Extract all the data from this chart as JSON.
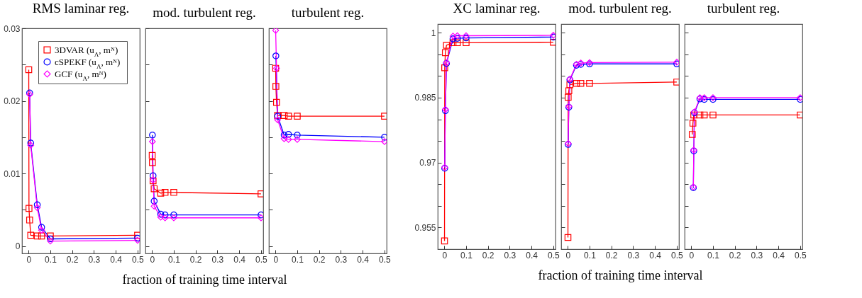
{
  "chart_data": [
    {
      "type": "line",
      "title": "RMS laminar reg.",
      "xlim": [
        -0.03,
        0.51
      ],
      "xticks": [
        0,
        0.1,
        0.2,
        0.3,
        0.4,
        0.5
      ],
      "ylim": [
        -0.001,
        0.03
      ],
      "yticks": [
        0,
        {
          "value": 0.005,
          "label": null
        },
        0.01,
        {
          "value": 0.015,
          "label": null
        },
        0.02,
        {
          "value": 0.025,
          "label": null
        },
        0.03
      ],
      "grid": false,
      "legend": "top right",
      "series": [
        {
          "name": "3DVAR (u$_{Λ}$, mᴺ)",
          "color": "#ff0000",
          "marker": "square",
          "x": [
            0.001,
            0.002,
            0.005,
            0.01,
            0.04,
            0.06,
            0.1,
            0.5
          ],
          "values": [
            0.0243,
            0.0052,
            0.0036,
            0.0015,
            0.0014,
            0.0014,
            0.0014,
            0.0015
          ]
        },
        {
          "name": "cSPEKF (u$_{Λ}$, mᴺ)",
          "color": "#0000ff",
          "marker": "circle",
          "x": [
            0.005,
            0.01,
            0.04,
            0.06,
            0.1,
            0.5
          ],
          "values": [
            0.0211,
            0.0142,
            0.0057,
            0.0026,
            0.001,
            0.0011
          ]
        },
        {
          "name": "GCF (u$_{Λ}$, mᴺ)",
          "color": "#ff00ff",
          "marker": "diamond",
          "x": [
            0.005,
            0.01,
            0.04,
            0.06,
            0.1,
            0.5
          ],
          "values": [
            0.0209,
            0.0139,
            0.0053,
            0.0022,
            0.0007,
            0.0008
          ]
        }
      ]
    },
    {
      "type": "line",
      "title": "mod. turbulent reg.",
      "xlabel": "fraction of training time interval",
      "tick_labels": "x",
      "xlim": [
        -0.03,
        0.51
      ],
      "xticks": [
        0,
        0.1,
        0.2,
        0.3,
        0.4,
        0.5
      ],
      "ylim": [
        -0.001,
        0.03
      ],
      "yticks": [
        {
          "value": 0,
          "label": null
        },
        {
          "value": 0.005,
          "label": null
        },
        {
          "value": 0.01,
          "label": null
        },
        {
          "value": 0.015,
          "label": null
        },
        {
          "value": 0.02,
          "label": null
        },
        {
          "value": 0.025,
          "label": null
        },
        {
          "value": 0.03,
          "label": null
        }
      ],
      "grid": false,
      "series": [
        {
          "color": "#ff0000",
          "marker": "square",
          "x": [
            0.001,
            0.002,
            0.005,
            0.01,
            0.04,
            0.06,
            0.1,
            0.5
          ],
          "values": [
            0.0125,
            0.0115,
            0.009,
            0.0079,
            0.0073,
            0.0074,
            0.0074,
            0.0072
          ]
        },
        {
          "color": "#0000ff",
          "marker": "circle",
          "x": [
            0.002,
            0.005,
            0.01,
            0.04,
            0.06,
            0.1,
            0.5
          ],
          "values": [
            0.0153,
            0.0097,
            0.0062,
            0.0044,
            0.0043,
            0.0043,
            0.0043
          ]
        },
        {
          "color": "#ff00ff",
          "marker": "diamond",
          "x": [
            0.002,
            0.005,
            0.01,
            0.04,
            0.06,
            0.1,
            0.5
          ],
          "values": [
            0.0144,
            0.0091,
            0.0055,
            0.004,
            0.0039,
            0.0039,
            0.0039
          ]
        }
      ]
    },
    {
      "type": "line",
      "title": "turbulent reg.",
      "tick_labels": "x",
      "xlim": [
        -0.03,
        0.51
      ],
      "xticks": [
        0,
        0.1,
        0.2,
        0.3,
        0.4,
        0.5
      ],
      "ylim": [
        -0.001,
        0.03
      ],
      "yticks": [
        {
          "value": 0,
          "label": null
        },
        {
          "value": 0.005,
          "label": null
        },
        {
          "value": 0.01,
          "label": null
        },
        {
          "value": 0.015,
          "label": null
        },
        {
          "value": 0.02,
          "label": null
        },
        {
          "value": 0.025,
          "label": null
        },
        {
          "value": 0.03,
          "label": null
        }
      ],
      "grid": false,
      "series": [
        {
          "color": "#ff0000",
          "marker": "square",
          "x": [
            0.001,
            0.002,
            0.005,
            0.01,
            0.04,
            0.06,
            0.1,
            0.5
          ],
          "values": [
            0.0245,
            0.022,
            0.0198,
            0.018,
            0.018,
            0.0179,
            0.0179,
            0.0179
          ]
        },
        {
          "color": "#0000ff",
          "marker": "circle",
          "x": [
            0.002,
            0.01,
            0.04,
            0.06,
            0.1,
            0.5
          ],
          "values": [
            0.0262,
            0.0179,
            0.0153,
            0.0154,
            0.0153,
            0.015
          ]
        },
        {
          "color": "#ff00ff",
          "marker": "diamond",
          "x": [
            0.001,
            0.005,
            0.01,
            0.04,
            0.06,
            0.1,
            0.5
          ],
          "values": [
            0.0297,
            0.0245,
            0.0174,
            0.0148,
            0.0147,
            0.0147,
            0.0144
          ]
        }
      ]
    },
    {
      "type": "line",
      "title": "XC laminar reg.",
      "xlim": [
        -0.03,
        0.51
      ],
      "xticks": [
        0,
        0.1,
        0.2,
        0.3,
        0.4,
        0.5
      ],
      "ylim": [
        0.95,
        1.002
      ],
      "yticks": [
        0.955,
        {
          "value": 0.96,
          "label": null
        },
        {
          "value": 0.965,
          "label": null
        },
        0.97,
        {
          "value": 0.975,
          "label": null
        },
        {
          "value": 0.98,
          "label": null
        },
        0.985,
        {
          "value": 0.99,
          "label": null
        },
        {
          "value": 0.995,
          "label": null
        },
        1
      ],
      "grid": false,
      "series": [
        {
          "color": "#ff0000",
          "marker": "square",
          "x": [
            0.001,
            0.002,
            0.005,
            0.01,
            0.04,
            0.06,
            0.1,
            0.5
          ],
          "values": [
            0.9519,
            0.9919,
            0.9954,
            0.9971,
            0.9977,
            0.9977,
            0.9977,
            0.9978
          ]
        },
        {
          "color": "#0000ff",
          "marker": "circle",
          "x": [
            0.002,
            0.005,
            0.01,
            0.04,
            0.06,
            0.1,
            0.5
          ],
          "values": [
            0.9687,
            0.982,
            0.9929,
            0.9986,
            0.9987,
            0.9988,
            0.999
          ]
        },
        {
          "color": "#ff00ff",
          "marker": "diamond",
          "x": [
            0.002,
            0.005,
            0.01,
            0.04,
            0.06,
            0.1,
            0.5
          ],
          "values": [
            0.9689,
            0.9823,
            0.9931,
            0.9992,
            0.9993,
            0.9993,
            0.9994
          ]
        }
      ]
    },
    {
      "type": "line",
      "title": "mod. turbulent reg.",
      "xlabel": "fraction of training time interval",
      "tick_labels": "x",
      "xlim": [
        -0.03,
        0.51
      ],
      "xticks": [
        0,
        0.1,
        0.2,
        0.3,
        0.4,
        0.5
      ],
      "ylim": [
        0.95,
        1.002
      ],
      "yticks": [
        {
          "value": 0.955,
          "label": null
        },
        {
          "value": 0.96,
          "label": null
        },
        {
          "value": 0.965,
          "label": null
        },
        {
          "value": 0.97,
          "label": null
        },
        {
          "value": 0.975,
          "label": null
        },
        {
          "value": 0.98,
          "label": null
        },
        {
          "value": 0.985,
          "label": null
        },
        {
          "value": 0.99,
          "label": null
        },
        {
          "value": 0.995,
          "label": null
        },
        {
          "value": 1,
          "label": null
        }
      ],
      "grid": false,
      "series": [
        {
          "color": "#ff0000",
          "marker": "square",
          "x": [
            0.001,
            0.002,
            0.005,
            0.01,
            0.04,
            0.06,
            0.1,
            0.5
          ],
          "values": [
            0.9527,
            0.9851,
            0.9866,
            0.988,
            0.9883,
            0.9883,
            0.9883,
            0.9886
          ]
        },
        {
          "color": "#0000ff",
          "marker": "circle",
          "x": [
            0.002,
            0.005,
            0.01,
            0.04,
            0.06,
            0.1,
            0.5
          ],
          "values": [
            0.9742,
            0.9828,
            0.9891,
            0.9925,
            0.9927,
            0.9928,
            0.9928
          ]
        },
        {
          "color": "#ff00ff",
          "marker": "diamond",
          "x": [
            0.002,
            0.005,
            0.01,
            0.04,
            0.06,
            0.1,
            0.5
          ],
          "values": [
            0.9744,
            0.983,
            0.9893,
            0.9927,
            0.993,
            0.9931,
            0.9932
          ]
        }
      ]
    },
    {
      "type": "line",
      "title": "turbulent reg.",
      "tick_labels": "x",
      "xlim": [
        -0.03,
        0.51
      ],
      "xticks": [
        0,
        0.1,
        0.2,
        0.3,
        0.4,
        0.5
      ],
      "ylim": [
        0.95,
        1.002
      ],
      "yticks": [
        {
          "value": 0.955,
          "label": null
        },
        {
          "value": 0.96,
          "label": null
        },
        {
          "value": 0.965,
          "label": null
        },
        {
          "value": 0.97,
          "label": null
        },
        {
          "value": 0.975,
          "label": null
        },
        {
          "value": 0.98,
          "label": null
        },
        {
          "value": 0.985,
          "label": null
        },
        {
          "value": 0.99,
          "label": null
        },
        {
          "value": 0.995,
          "label": null
        },
        {
          "value": 1,
          "label": null
        }
      ],
      "grid": false,
      "series": [
        {
          "color": "#ff0000",
          "marker": "square",
          "x": [
            0.005,
            0.008,
            0.012,
            0.04,
            0.06,
            0.1,
            0.5
          ],
          "values": [
            0.9765,
            0.9791,
            0.981,
            0.981,
            0.981,
            0.981,
            0.981
          ]
        },
        {
          "color": "#0000ff",
          "marker": "circle",
          "x": [
            0.01,
            0.012,
            0.015,
            0.04,
            0.06,
            0.1,
            0.5
          ],
          "values": [
            0.9642,
            0.9727,
            0.9815,
            0.9847,
            0.9846,
            0.9846,
            0.9846
          ]
        },
        {
          "color": "#ff00ff",
          "marker": "diamond",
          "x": [
            0.01,
            0.012,
            0.015,
            0.04,
            0.06,
            0.1,
            0.5
          ],
          "values": [
            0.9644,
            0.9729,
            0.9817,
            0.985,
            0.985,
            0.985,
            0.985
          ]
        }
      ]
    }
  ]
}
